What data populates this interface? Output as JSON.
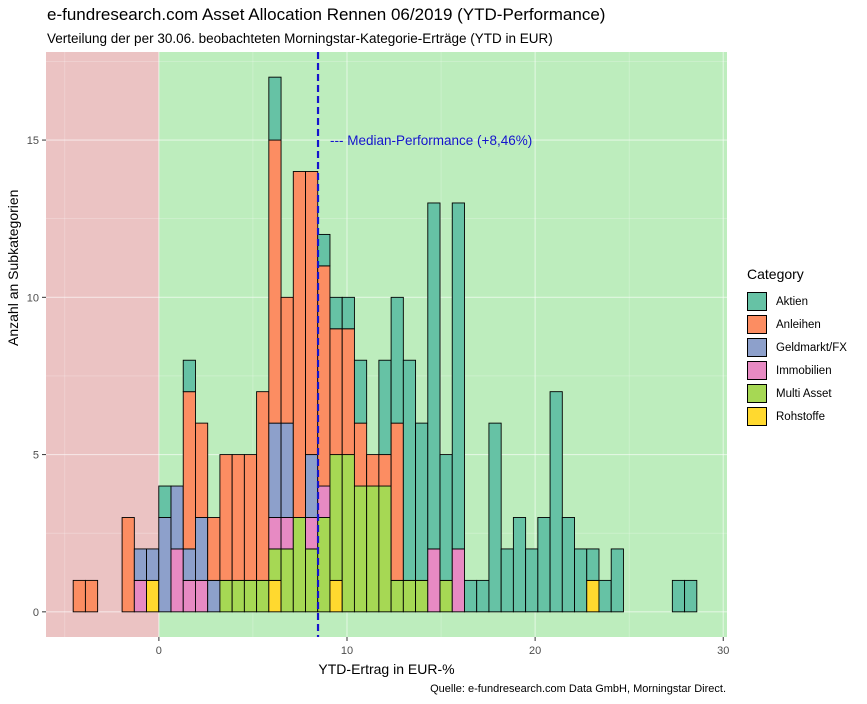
{
  "title": "e-fundresearch.com Asset Allocation Rennen 06/2019 (YTD-Performance)",
  "subtitle": "Verteilung der per 30.06. beobachteten Morningstar-Kategorie-Erträge (YTD in EUR)",
  "caption": "Quelle: e-fundresearch.com Data GmbH, Morningstar Direct.",
  "median_label": "--- Median-Performance (+8,46%)",
  "chart_data": {
    "type": "bar",
    "stacked": true,
    "title": "e-fundresearch.com Asset Allocation Rennen 06/2019 (YTD-Performance)",
    "subtitle": "Verteilung der per 30.06. beobachteten Morningstar-Kategorie-Erträge (YTD in EUR)",
    "xlabel": "YTD-Ertrag in EUR-%",
    "ylabel": "Anzahl an Subkategorien",
    "xlim": [
      -6,
      30.2
    ],
    "ylim": [
      -0.8,
      17.8
    ],
    "xticks": [
      0,
      10,
      20,
      30
    ],
    "yticks": [
      0,
      5,
      10,
      15
    ],
    "bin_width": 0.65,
    "median": 8.46,
    "negative_region_color": "#ebc3c3",
    "positive_region_color": "#bdedbd",
    "median_color": "#1414cc",
    "legend_title": "Category",
    "legend_position": "right",
    "series": [
      {
        "name": "Rohstoffe",
        "color": "#ffd92f"
      },
      {
        "name": "Multi Asset",
        "color": "#a6d854"
      },
      {
        "name": "Immobilien",
        "color": "#e78ac3"
      },
      {
        "name": "Geldmarkt/FX",
        "color": "#8da0cb"
      },
      {
        "name": "Anleihen",
        "color": "#fc8d62"
      },
      {
        "name": "Aktien",
        "color": "#66c2a5"
      }
    ],
    "bins": [
      {
        "x": -4.23,
        "Anleihen": 1
      },
      {
        "x": -3.58,
        "Anleihen": 1
      },
      {
        "x": -1.63,
        "Anleihen": 3
      },
      {
        "x": -0.98,
        "Immobilien": 1,
        "Geldmarkt/FX": 1
      },
      {
        "x": -0.33,
        "Rohstoffe": 1,
        "Geldmarkt/FX": 1
      },
      {
        "x": 0.32,
        "Geldmarkt/FX": 3,
        "Aktien": 1
      },
      {
        "x": 0.97,
        "Immobilien": 2,
        "Geldmarkt/FX": 2
      },
      {
        "x": 1.62,
        "Immobilien": 1,
        "Geldmarkt/FX": 1,
        "Anleihen": 5,
        "Aktien": 1
      },
      {
        "x": 2.27,
        "Immobilien": 1,
        "Geldmarkt/FX": 2,
        "Anleihen": 3
      },
      {
        "x": 2.92,
        "Geldmarkt/FX": 1,
        "Anleihen": 2
      },
      {
        "x": 3.57,
        "Multi Asset": 1,
        "Anleihen": 4
      },
      {
        "x": 4.22,
        "Multi Asset": 1,
        "Anleihen": 4
      },
      {
        "x": 4.87,
        "Multi Asset": 1,
        "Anleihen": 4
      },
      {
        "x": 5.52,
        "Multi Asset": 1,
        "Anleihen": 6
      },
      {
        "x": 6.17,
        "Rohstoffe": 1,
        "Multi Asset": 1,
        "Immobilien": 1,
        "Geldmarkt/FX": 3,
        "Anleihen": 9,
        "Aktien": 2
      },
      {
        "x": 6.82,
        "Multi Asset": 2,
        "Immobilien": 1,
        "Geldmarkt/FX": 3,
        "Anleihen": 4
      },
      {
        "x": 7.47,
        "Multi Asset": 3,
        "Anleihen": 11
      },
      {
        "x": 8.12,
        "Multi Asset": 2,
        "Immobilien": 1,
        "Geldmarkt/FX": 2,
        "Anleihen": 9
      },
      {
        "x": 8.77,
        "Multi Asset": 3,
        "Immobilien": 1,
        "Anleihen": 7,
        "Aktien": 1
      },
      {
        "x": 9.42,
        "Rohstoffe": 1,
        "Multi Asset": 4,
        "Anleihen": 4,
        "Aktien": 1
      },
      {
        "x": 10.07,
        "Multi Asset": 5,
        "Anleihen": 4,
        "Aktien": 1
      },
      {
        "x": 10.72,
        "Multi Asset": 4,
        "Anleihen": 2,
        "Aktien": 2
      },
      {
        "x": 11.37,
        "Multi Asset": 4,
        "Anleihen": 1
      },
      {
        "x": 12.02,
        "Multi Asset": 4,
        "Anleihen": 1,
        "Aktien": 3
      },
      {
        "x": 12.67,
        "Multi Asset": 1,
        "Anleihen": 5,
        "Aktien": 4
      },
      {
        "x": 13.32,
        "Multi Asset": 1,
        "Aktien": 7
      },
      {
        "x": 13.97,
        "Multi Asset": 1,
        "Aktien": 5
      },
      {
        "x": 14.62,
        "Immobilien": 2,
        "Aktien": 11
      },
      {
        "x": 15.27,
        "Multi Asset": 1,
        "Aktien": 4
      },
      {
        "x": 15.92,
        "Immobilien": 2,
        "Aktien": 11
      },
      {
        "x": 16.57,
        "Aktien": 1
      },
      {
        "x": 17.22,
        "Aktien": 1
      },
      {
        "x": 17.87,
        "Aktien": 6
      },
      {
        "x": 18.52,
        "Aktien": 2
      },
      {
        "x": 19.17,
        "Aktien": 3
      },
      {
        "x": 19.82,
        "Aktien": 2
      },
      {
        "x": 20.47,
        "Aktien": 3
      },
      {
        "x": 21.12,
        "Aktien": 7
      },
      {
        "x": 21.77,
        "Aktien": 3
      },
      {
        "x": 22.42,
        "Aktien": 2
      },
      {
        "x": 23.07,
        "Rohstoffe": 1,
        "Aktien": 1
      },
      {
        "x": 23.72,
        "Aktien": 1
      },
      {
        "x": 24.37,
        "Aktien": 2
      },
      {
        "x": 27.62,
        "Aktien": 1
      },
      {
        "x": 28.27,
        "Aktien": 1
      }
    ]
  }
}
